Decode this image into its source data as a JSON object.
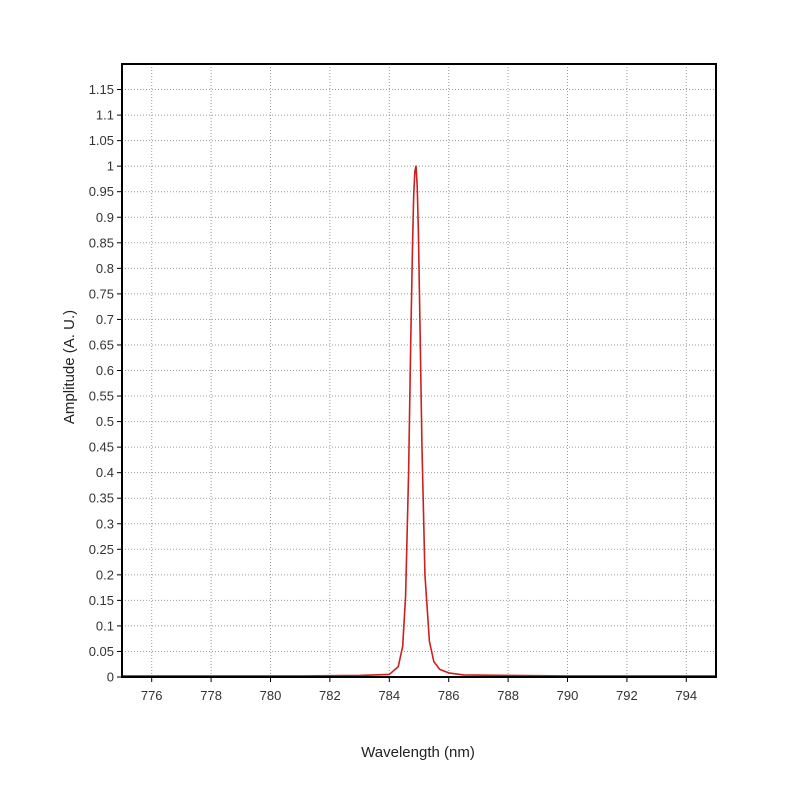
{
  "chart_data": {
    "type": "line",
    "title": "",
    "xlabel": "Wavelength (nm)",
    "ylabel": "Amplitude (A. U.)",
    "xlim": [
      775,
      795
    ],
    "ylim": [
      0,
      1.2
    ],
    "x_ticks": [
      776,
      778,
      780,
      782,
      784,
      786,
      788,
      790,
      792,
      794
    ],
    "y_ticks": [
      0,
      0.05,
      0.1,
      0.15,
      0.2,
      0.25,
      0.3,
      0.35,
      0.4,
      0.45,
      0.5,
      0.55,
      0.6,
      0.65,
      0.7,
      0.75,
      0.8,
      0.85,
      0.9,
      0.95,
      1,
      1.05,
      1.1,
      1.15
    ],
    "grid": true,
    "legend": "none",
    "series": [
      {
        "color": "#cc1f1f",
        "x": [
          775,
          777,
          779,
          781,
          783,
          784,
          784.3,
          784.45,
          784.55,
          784.65,
          784.72,
          784.78,
          784.82,
          784.86,
          784.9,
          784.94,
          784.98,
          785.03,
          785.1,
          785.2,
          785.35,
          785.5,
          785.7,
          786,
          786.5,
          788,
          790,
          792,
          795
        ],
        "y": [
          0.002,
          0.002,
          0.002,
          0.002,
          0.003,
          0.005,
          0.02,
          0.06,
          0.16,
          0.4,
          0.65,
          0.84,
          0.94,
          0.99,
          1.0,
          0.96,
          0.87,
          0.7,
          0.45,
          0.2,
          0.07,
          0.03,
          0.015,
          0.008,
          0.004,
          0.003,
          0.002,
          0.002,
          0.002
        ]
      }
    ]
  }
}
